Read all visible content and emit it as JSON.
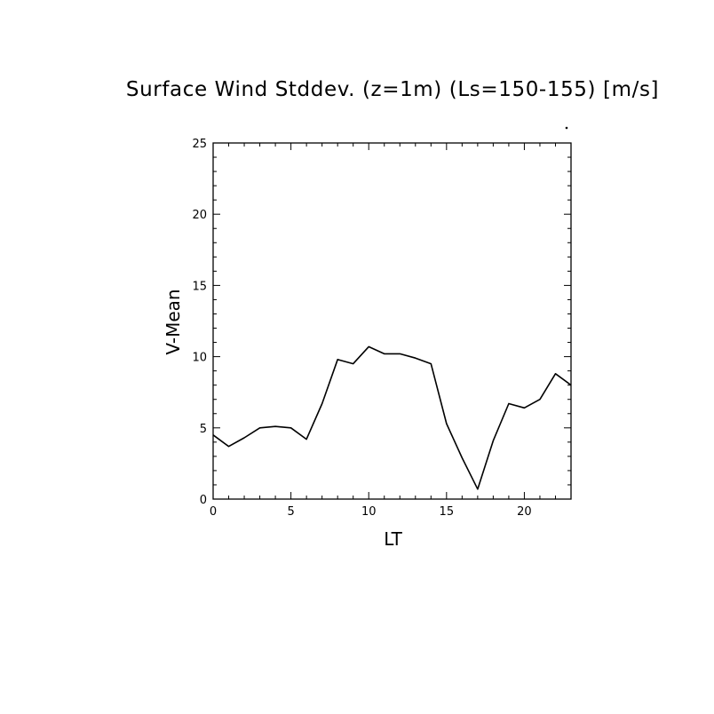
{
  "chart_data": {
    "type": "line",
    "title": "Surface Wind Stddev. (z=1m) (Ls=150-155) [m/s]",
    "xlabel": "LT",
    "ylabel": "V-Mean",
    "xlim": [
      0,
      23
    ],
    "ylim": [
      0,
      25
    ],
    "xticks": [
      0,
      5,
      10,
      15,
      20
    ],
    "yticks": [
      0,
      5,
      10,
      15,
      20,
      25
    ],
    "grid": false,
    "series": [
      {
        "x": [
          0,
          1,
          2,
          3,
          4,
          5,
          6,
          7,
          8,
          9,
          10,
          11,
          12,
          13,
          14,
          15,
          16,
          17,
          18,
          19,
          20,
          21,
          22,
          23
        ],
        "values": [
          4.5,
          3.7,
          4.3,
          5.0,
          5.1,
          5.0,
          4.2,
          6.7,
          9.8,
          9.5,
          10.7,
          10.2,
          10.2,
          9.9,
          9.5,
          5.3,
          2.9,
          0.7,
          4.1,
          6.7,
          6.4,
          7.0,
          8.8,
          8.0
        ],
        "color": "#000000"
      }
    ]
  }
}
